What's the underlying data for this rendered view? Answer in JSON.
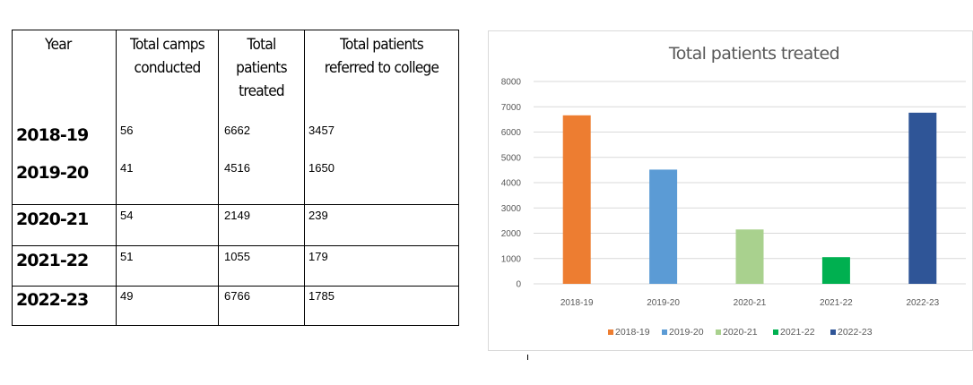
{
  "table": {
    "headers": {
      "year": "Year",
      "camps": [
        "Total camps",
        "conducted"
      ],
      "treated": [
        "Total",
        "patients",
        "treated"
      ],
      "referred": [
        "Total patients",
        "referred to college"
      ]
    },
    "rows": [
      {
        "year": "2018-19",
        "camps": "56",
        "treated": "6662",
        "referred": "3457"
      },
      {
        "year": "2019-20",
        "camps": "41",
        "treated": "4516",
        "referred": "1650"
      },
      {
        "year": "2020-21",
        "camps": "54",
        "treated": "2149",
        "referred": "239"
      },
      {
        "year": "2021-22",
        "camps": "51",
        "treated": "1055",
        "referred": "179"
      },
      {
        "year": "2022-23",
        "camps": "49",
        "treated": "6766",
        "referred": "1785"
      }
    ]
  },
  "chart_data": {
    "type": "bar",
    "title": "Total patients treated",
    "categories": [
      "2018-19",
      "2019-20",
      "2020-21",
      "2021-22",
      "2022-23"
    ],
    "values": [
      6662,
      4516,
      2149,
      1055,
      6766
    ],
    "colors": [
      "#ed7d31",
      "#5b9bd5",
      "#a9d18e",
      "#00b050",
      "#2f5597"
    ],
    "ylim": [
      0,
      8000
    ],
    "yticks": [
      "0",
      "1000",
      "2000",
      "3000",
      "4000",
      "5000",
      "6000",
      "7000",
      "8000"
    ],
    "grid": true,
    "legend": "bottom",
    "legend_entries": [
      "2018-19",
      "2019-20",
      "2020-21",
      "2021-22",
      "2022-23"
    ]
  }
}
